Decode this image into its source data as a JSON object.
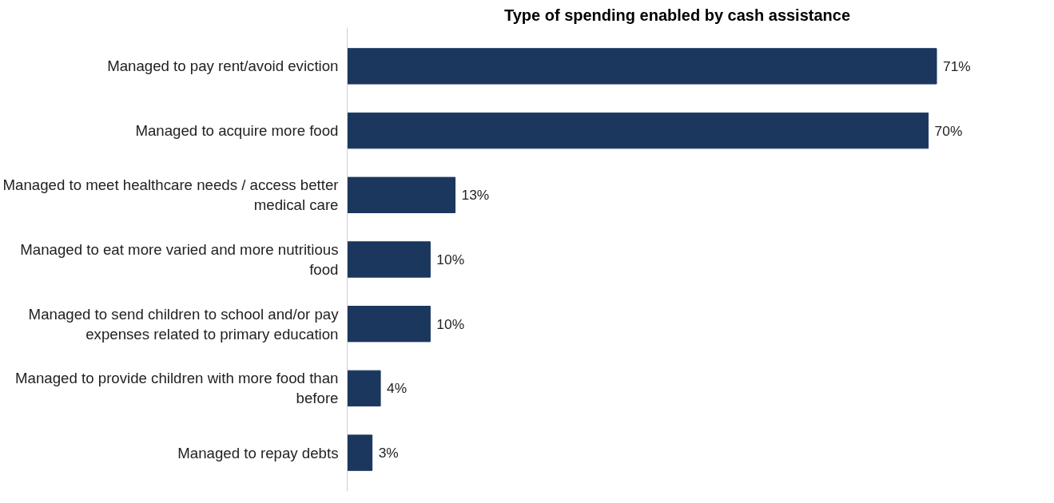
{
  "chart_data": {
    "type": "bar",
    "orientation": "horizontal",
    "title": "Type of spending enabled by cash assistance",
    "categories": [
      "Managed to pay rent/avoid eviction",
      "Managed to acquire more food",
      "Managed to meet healthcare needs / access better medical care",
      "Managed to eat more varied and more nutritious food",
      "Managed to send children to school and/or pay expenses related to primary education",
      "Managed to provide children with more food than before",
      "Managed to repay debts"
    ],
    "values": [
      71,
      70,
      13,
      10,
      10,
      4,
      3
    ],
    "value_labels": [
      "71%",
      "70%",
      "13%",
      "10%",
      "10%",
      "4%",
      "3%"
    ],
    "color": "#1b375e",
    "grid": false
  }
}
